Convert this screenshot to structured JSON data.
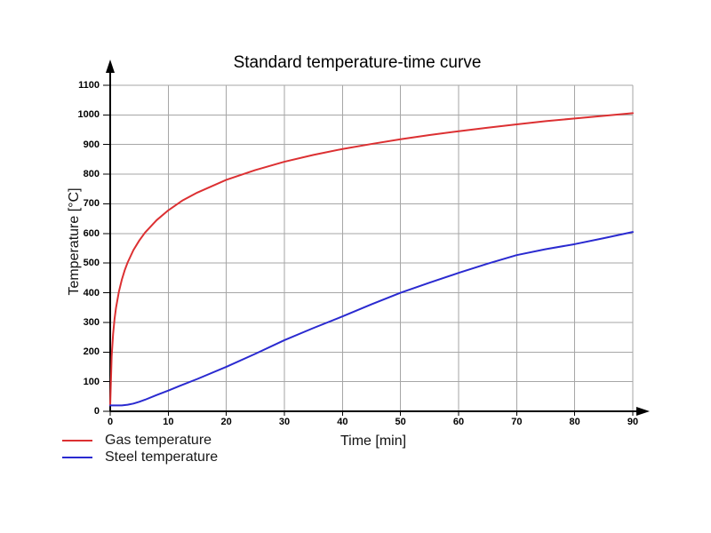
{
  "page": {
    "background": "#ffffff"
  },
  "chart_data": {
    "type": "line",
    "title": "Standard temperature-time curve",
    "xlabel": "Time [min]",
    "ylabel": "Temperature [°C]",
    "xlim": [
      0,
      90
    ],
    "ylim": [
      0,
      1100
    ],
    "x_ticks": [
      0,
      10,
      20,
      30,
      40,
      50,
      60,
      70,
      80,
      90
    ],
    "y_ticks": [
      0,
      100,
      200,
      300,
      400,
      500,
      600,
      700,
      800,
      900,
      1000,
      1100
    ],
    "grid": true,
    "legend_position": "bottom-left",
    "colors": {
      "grid": "#a6a6a6",
      "axis": "#000000",
      "text": "#000000"
    },
    "series": [
      {
        "name": "Gas temperature",
        "color": "#dc3032",
        "points": [
          [
            0,
            20
          ],
          [
            0.25,
            185
          ],
          [
            0.5,
            261
          ],
          [
            0.75,
            312
          ],
          [
            1,
            349
          ],
          [
            1.5,
            404
          ],
          [
            2,
            444
          ],
          [
            2.5,
            476
          ],
          [
            3,
            502
          ],
          [
            4,
            544
          ],
          [
            5,
            576
          ],
          [
            6,
            603
          ],
          [
            8,
            645
          ],
          [
            10,
            678
          ],
          [
            12.5,
            712
          ],
          [
            15,
            738
          ],
          [
            20,
            781
          ],
          [
            25,
            814
          ],
          [
            30,
            842
          ],
          [
            35,
            865
          ],
          [
            40,
            885
          ],
          [
            45,
            902
          ],
          [
            50,
            918
          ],
          [
            55,
            932
          ],
          [
            60,
            945
          ],
          [
            65,
            957
          ],
          [
            70,
            968
          ],
          [
            75,
            979
          ],
          [
            80,
            988
          ],
          [
            85,
            997
          ],
          [
            90,
            1006
          ]
        ]
      },
      {
        "name": "Steel temperature",
        "color": "#2a2ad0",
        "points": [
          [
            0,
            20
          ],
          [
            1,
            20
          ],
          [
            2,
            20
          ],
          [
            3,
            22
          ],
          [
            4,
            26
          ],
          [
            5,
            32
          ],
          [
            6,
            39
          ],
          [
            8,
            55
          ],
          [
            10,
            70
          ],
          [
            12,
            86
          ],
          [
            15,
            109
          ],
          [
            20,
            150
          ],
          [
            25,
            194
          ],
          [
            30,
            240
          ],
          [
            35,
            281
          ],
          [
            40,
            320
          ],
          [
            45,
            361
          ],
          [
            50,
            400
          ],
          [
            55,
            434
          ],
          [
            60,
            467
          ],
          [
            65,
            498
          ],
          [
            70,
            527
          ],
          [
            75,
            547
          ],
          [
            80,
            564
          ],
          [
            85,
            584
          ],
          [
            90,
            605
          ]
        ]
      }
    ]
  }
}
